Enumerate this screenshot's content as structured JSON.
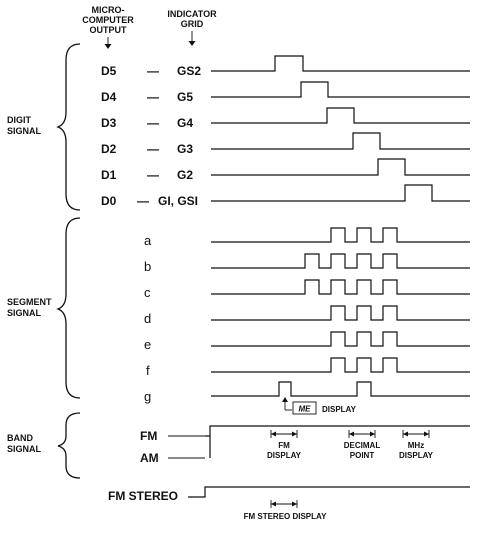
{
  "headers": {
    "left": [
      "MICRO-",
      "COMPUTER",
      "OUTPUT"
    ],
    "right": [
      "INDICATOR",
      "GRID"
    ]
  },
  "groups": {
    "digit": [
      "DIGIT",
      "SIGNAL"
    ],
    "segment": [
      "SEGMENT",
      "SIGNAL"
    ],
    "band": [
      "BAND",
      "SIGNAL"
    ]
  },
  "digit_rows": [
    {
      "output": "D5",
      "dash": "—",
      "grid": "GS2"
    },
    {
      "output": "D4",
      "dash": "—",
      "grid": "G5"
    },
    {
      "output": "D3",
      "dash": "—",
      "grid": "G4"
    },
    {
      "output": "D2",
      "dash": "—",
      "grid": "G3"
    },
    {
      "output": "D1",
      "dash": "—",
      "grid": "G2"
    },
    {
      "output": "D0",
      "dash": "—",
      "grid": "GI, GSI"
    }
  ],
  "segment_rows": [
    "a",
    "b",
    "c",
    "d",
    "e",
    "f",
    "g"
  ],
  "band_rows": [
    "FM",
    "AM"
  ],
  "stereo_label": "FM STEREO",
  "annotations": {
    "me_box": "ME",
    "me_display": "DISPLAY",
    "fm_display": [
      "FM",
      "DISPLAY"
    ],
    "decimal_point": [
      "DECIMAL",
      "POINT"
    ],
    "mhz_display": [
      "MHz",
      "DISPLAY"
    ],
    "fm_stereo_display": "FM STEREO DISPLAY"
  }
}
